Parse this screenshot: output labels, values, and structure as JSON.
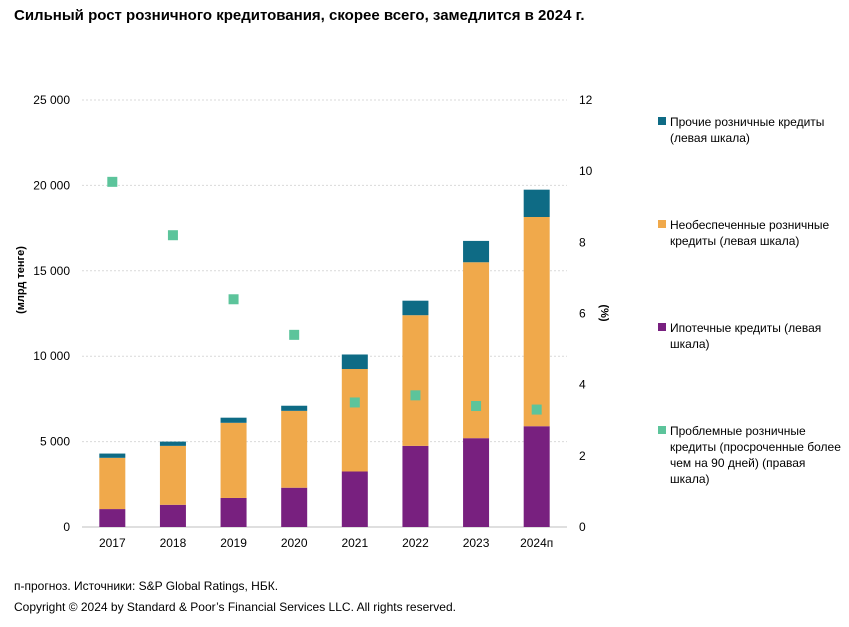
{
  "title": "Сильный рост розничного кредитования, скорее всего, замедлится в 2024 г.",
  "chart_data": {
    "type": "bar",
    "stacked": true,
    "categories": [
      "2017",
      "2018",
      "2019",
      "2020",
      "2021",
      "2022",
      "2023",
      "2024п"
    ],
    "series": [
      {
        "name": "Ипотечные кредиты (левая шкала)",
        "color": "#78207f",
        "axis": "left",
        "values": [
          1050,
          1300,
          1700,
          2300,
          3250,
          4750,
          5200,
          5900
        ]
      },
      {
        "name": "Необеспеченные розничные кредиты (левая шкала)",
        "color": "#f0a94b",
        "axis": "left",
        "values": [
          3000,
          3450,
          4400,
          4500,
          6000,
          7650,
          10300,
          12250
        ]
      },
      {
        "name": "Прочие розничные кредиты (левая шкала)",
        "color": "#0e6b85",
        "axis": "left",
        "values": [
          250,
          250,
          300,
          300,
          850,
          850,
          1250,
          1600
        ]
      },
      {
        "name": "Проблемные розничные кредиты (просроченные более чем на 90 дней) (правая шкала)",
        "color": "#5cc49b",
        "axis": "right",
        "type": "scatter",
        "values": [
          9.7,
          8.2,
          6.4,
          5.4,
          3.5,
          3.7,
          3.4,
          3.3
        ]
      }
    ],
    "ylabel_left": "(млрд тенге)",
    "ylabel_right": "(%)",
    "ylim_left": [
      0,
      25000
    ],
    "ylim_right": [
      0,
      12
    ],
    "left_ticks": [
      "0",
      "5 000",
      "10 000",
      "15 000",
      "20 000",
      "25 000"
    ],
    "left_tick_values": [
      0,
      5000,
      10000,
      15000,
      20000,
      25000
    ],
    "right_ticks": [
      "0",
      "2",
      "4",
      "6",
      "8",
      "10",
      "12"
    ],
    "right_tick_values": [
      0,
      2,
      4,
      6,
      8,
      10,
      12
    ],
    "grid": true,
    "legend_position": "right"
  },
  "legend": [
    {
      "label": "Прочие розничные кредиты (левая шкала)",
      "color": "#0e6b85"
    },
    {
      "label": "Необеспеченные розничные кредиты (левая шкала)",
      "color": "#f0a94b"
    },
    {
      "label": "Ипотечные кредиты (левая шкала)",
      "color": "#78207f"
    },
    {
      "label": "Проблемные розничные кредиты (просроченные более чем на 90 дней) (правая шкала)",
      "color": "#5cc49b"
    }
  ],
  "footnote": {
    "source": "п-прогноз. Источники: S&P Global Ratings, НБК.",
    "copyright": "Copyright © 2024 by Standard & Poor’s Financial Services LLC. All rights reserved."
  }
}
